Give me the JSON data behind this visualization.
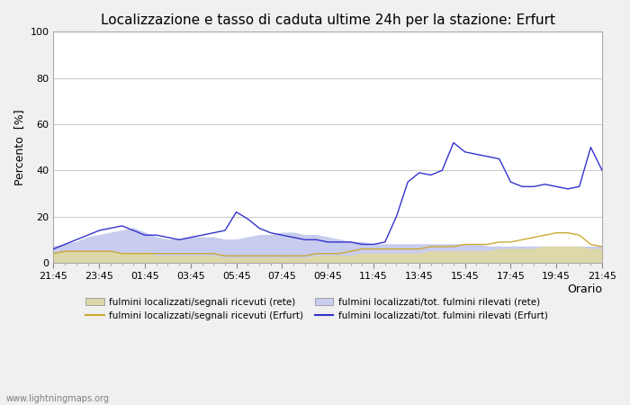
{
  "title": "Localizzazione e tasso di caduta ultime 24h per la stazione: Erfurt",
  "ylabel": "Percento  [%]",
  "xlabel": "Orario",
  "watermark": "www.lightningmaps.org",
  "ylim": [
    0,
    100
  ],
  "xtick_labels": [
    "21:45",
    "23:45",
    "01:45",
    "03:45",
    "05:45",
    "07:45",
    "09:45",
    "11:45",
    "13:45",
    "15:45",
    "17:45",
    "19:45",
    "21:45"
  ],
  "x": [
    0,
    1,
    2,
    3,
    4,
    5,
    6,
    7,
    8,
    9,
    10,
    11,
    12,
    13,
    14,
    15,
    16,
    17,
    18,
    19,
    20,
    21,
    22,
    23,
    24,
    25,
    26,
    27,
    28,
    29,
    30,
    31,
    32,
    33,
    34,
    35,
    36,
    37,
    38,
    39,
    40,
    41,
    42,
    43,
    44,
    45,
    46,
    47,
    48
  ],
  "rete_fill": [
    4,
    5,
    5,
    5,
    5,
    5,
    4,
    4,
    4,
    3,
    3,
    3,
    3,
    3,
    3,
    2,
    2,
    2,
    2,
    2,
    2,
    2,
    2,
    3,
    3,
    3,
    3,
    4,
    4,
    4,
    4,
    4,
    4,
    5,
    5,
    5,
    5,
    5,
    5,
    6,
    6,
    6,
    6,
    7,
    7,
    7,
    7,
    6,
    6
  ],
  "erfurt_line": [
    4,
    5,
    5,
    5,
    5,
    5,
    4,
    4,
    4,
    4,
    4,
    4,
    4,
    4,
    4,
    3,
    3,
    3,
    3,
    3,
    3,
    3,
    3,
    4,
    4,
    4,
    5,
    6,
    6,
    6,
    6,
    6,
    6,
    7,
    7,
    7,
    8,
    8,
    8,
    9,
    9,
    10,
    11,
    12,
    13,
    13,
    12,
    8,
    7
  ],
  "rete_fill2": [
    7,
    8,
    9,
    11,
    12,
    13,
    14,
    15,
    13,
    11,
    10,
    10,
    11,
    11,
    11,
    10,
    10,
    11,
    12,
    12,
    13,
    13,
    12,
    12,
    11,
    10,
    9,
    9,
    8,
    8,
    8,
    8,
    8,
    8,
    8,
    8,
    8,
    8,
    7,
    7,
    7,
    7,
    7,
    7,
    7,
    7,
    7,
    7,
    7
  ],
  "erfurt_line2": [
    6,
    8,
    10,
    12,
    14,
    15,
    16,
    14,
    12,
    12,
    11,
    10,
    11,
    12,
    13,
    14,
    22,
    19,
    15,
    13,
    12,
    11,
    10,
    10,
    9,
    9,
    9,
    8,
    8,
    9,
    20,
    35,
    39,
    38,
    40,
    52,
    48,
    47,
    46,
    45,
    35,
    33,
    33,
    34,
    33,
    32,
    33,
    50,
    40
  ],
  "background_color": "#f0f0f0",
  "plot_bg_color": "#ffffff",
  "grid_color": "#cccccc",
  "title_fontsize": 11,
  "axis_fontsize": 9,
  "tick_fontsize": 8,
  "fill_rete_color": "#ddd8aa",
  "fill_rete2_color": "#c8ccee",
  "line_erfurt_color": "#ccaa33",
  "line_erfurt2_color": "#3333cc"
}
